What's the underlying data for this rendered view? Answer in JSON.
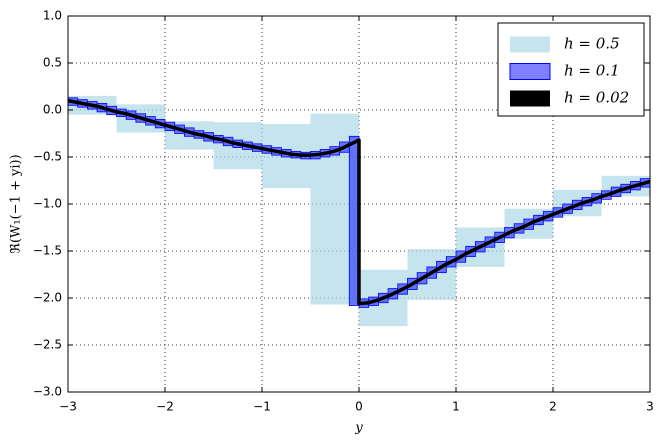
{
  "chart_data": {
    "type": "interval",
    "x_label": "y",
    "y_label": "ℜ(W₁(−1 + yi))",
    "xlim": [
      -3,
      3
    ],
    "ylim": [
      -3,
      1
    ],
    "xticks": [
      {
        "value": -3,
        "label": "−3"
      },
      {
        "value": -2,
        "label": "−2"
      },
      {
        "value": -1,
        "label": "−1"
      },
      0,
      1,
      2,
      3
    ],
    "yticks": [
      {
        "value": -3,
        "label": "−3.0"
      },
      {
        "value": -2.5,
        "label": "−2.5"
      },
      {
        "value": -2,
        "label": "−2.0"
      },
      {
        "value": -1.5,
        "label": "−1.5"
      },
      {
        "value": -1,
        "label": "−1.0"
      },
      {
        "value": -0.5,
        "label": "−0.5"
      },
      {
        "value": 0,
        "label": "0.0"
      },
      0.5,
      {
        "value": 1,
        "label": "1.0"
      }
    ],
    "grid": true,
    "legend": "upper right",
    "series": [
      {
        "name": "h = 0.5",
        "kind": "box",
        "color": "#add8e6",
        "bins": [
          -3,
          -2.5,
          -2,
          -1.5,
          -1,
          -0.5,
          0,
          0.5,
          1,
          1.5,
          2,
          2.5,
          3
        ],
        "lo": [
          -0.05,
          -0.24,
          -0.42,
          -0.63,
          -0.83,
          -2.07,
          -2.3,
          -2.02,
          -1.67,
          -1.37,
          -1.13,
          -0.92
        ],
        "hi": [
          0.15,
          0.06,
          -0.12,
          -0.13,
          -0.15,
          -0.04,
          -1.7,
          -1.48,
          -1.25,
          -1.05,
          -0.85,
          -0.7
        ]
      },
      {
        "name": "h = 0.1",
        "kind": "box",
        "color": "#0000ff",
        "bins": [
          -3,
          -2.9,
          -2.8,
          -2.7,
          -2.6,
          -2.5,
          -2.4,
          -2.3,
          -2.2,
          -2.1,
          -2,
          -1.9,
          -1.8,
          -1.7,
          -1.6,
          -1.5,
          -1.4,
          -1.3,
          -1.2,
          -1.1,
          -1,
          -0.9,
          -0.8,
          -0.7,
          -0.6,
          -0.5,
          -0.4,
          -0.3,
          -0.2,
          -0.1,
          0,
          0.1,
          0.2,
          0.3,
          0.4,
          0.5,
          0.6,
          0.7,
          0.8,
          0.9,
          1,
          1.1,
          1.2,
          1.3,
          1.4,
          1.5,
          1.6,
          1.7,
          1.8,
          1.9,
          2,
          2.1,
          2.2,
          2.3,
          2.4,
          2.5,
          2.6,
          2.7,
          2.8,
          2.9,
          3
        ],
        "lo": [
          0.05,
          0.03,
          0.01,
          -0.02,
          -0.05,
          -0.07,
          -0.1,
          -0.13,
          -0.16,
          -0.19,
          -0.22,
          -0.25,
          -0.28,
          -0.3,
          -0.33,
          -0.35,
          -0.38,
          -0.4,
          -0.42,
          -0.44,
          -0.46,
          -0.48,
          -0.5,
          -0.51,
          -0.52,
          -0.52,
          -0.5,
          -0.48,
          -0.45,
          -2.08,
          -2.1,
          -2.08,
          -2.05,
          -2.01,
          -1.96,
          -1.91,
          -1.85,
          -1.79,
          -1.73,
          -1.67,
          -1.62,
          -1.56,
          -1.51,
          -1.46,
          -1.41,
          -1.36,
          -1.31,
          -1.27,
          -1.22,
          -1.18,
          -1.14,
          -1.1,
          -1.06,
          -1.02,
          -0.99,
          -0.95,
          -0.92,
          -0.88,
          -0.85,
          -0.82
        ],
        "hi": [
          0.13,
          0.11,
          0.09,
          0.07,
          0.04,
          0.01,
          -0.01,
          -0.04,
          -0.07,
          -0.1,
          -0.13,
          -0.16,
          -0.19,
          -0.22,
          -0.24,
          -0.27,
          -0.29,
          -0.32,
          -0.34,
          -0.36,
          -0.38,
          -0.4,
          -0.42,
          -0.44,
          -0.45,
          -0.44,
          -0.42,
          -0.39,
          -0.34,
          -0.28,
          -2.01,
          -1.99,
          -1.95,
          -1.9,
          -1.85,
          -1.79,
          -1.73,
          -1.67,
          -1.61,
          -1.56,
          -1.5,
          -1.45,
          -1.4,
          -1.35,
          -1.3,
          -1.25,
          -1.21,
          -1.16,
          -1.12,
          -1.08,
          -1.04,
          -1,
          -0.96,
          -0.93,
          -0.89,
          -0.86,
          -0.82,
          -0.79,
          -0.76,
          -0.73
        ]
      },
      {
        "name": "h = 0.02",
        "kind": "line",
        "color": "#000000",
        "x": [
          -3,
          -2.9,
          -2.8,
          -2.7,
          -2.6,
          -2.5,
          -2.4,
          -2.3,
          -2.2,
          -2.1,
          -2,
          -1.9,
          -1.8,
          -1.7,
          -1.6,
          -1.5,
          -1.4,
          -1.3,
          -1.2,
          -1.1,
          -1,
          -0.9,
          -0.8,
          -0.7,
          -0.6,
          -0.5,
          -0.4,
          -0.3,
          -0.2,
          -0.1,
          0,
          0,
          0.1,
          0.2,
          0.3,
          0.4,
          0.5,
          0.6,
          0.7,
          0.8,
          0.9,
          1,
          1.1,
          1.2,
          1.3,
          1.4,
          1.5,
          1.6,
          1.7,
          1.8,
          1.9,
          2,
          2.1,
          2.2,
          2.3,
          2.4,
          2.5,
          2.6,
          2.7,
          2.8,
          2.9,
          3
        ],
        "values": [
          0.1,
          0.08,
          0.06,
          0.04,
          0.01,
          -0.02,
          -0.04,
          -0.07,
          -0.1,
          -0.13,
          -0.16,
          -0.19,
          -0.22,
          -0.25,
          -0.27,
          -0.3,
          -0.32,
          -0.35,
          -0.37,
          -0.39,
          -0.41,
          -0.43,
          -0.45,
          -0.47,
          -0.48,
          -0.48,
          -0.47,
          -0.45,
          -0.42,
          -0.37,
          -0.32,
          -2.06,
          -2.05,
          -2.02,
          -1.98,
          -1.93,
          -1.88,
          -1.82,
          -1.76,
          -1.7,
          -1.64,
          -1.59,
          -1.53,
          -1.48,
          -1.43,
          -1.38,
          -1.33,
          -1.28,
          -1.24,
          -1.19,
          -1.15,
          -1.11,
          -1.07,
          -1.03,
          -0.99,
          -0.96,
          -0.92,
          -0.89,
          -0.85,
          -0.82,
          -0.79,
          -0.76
        ]
      }
    ]
  }
}
